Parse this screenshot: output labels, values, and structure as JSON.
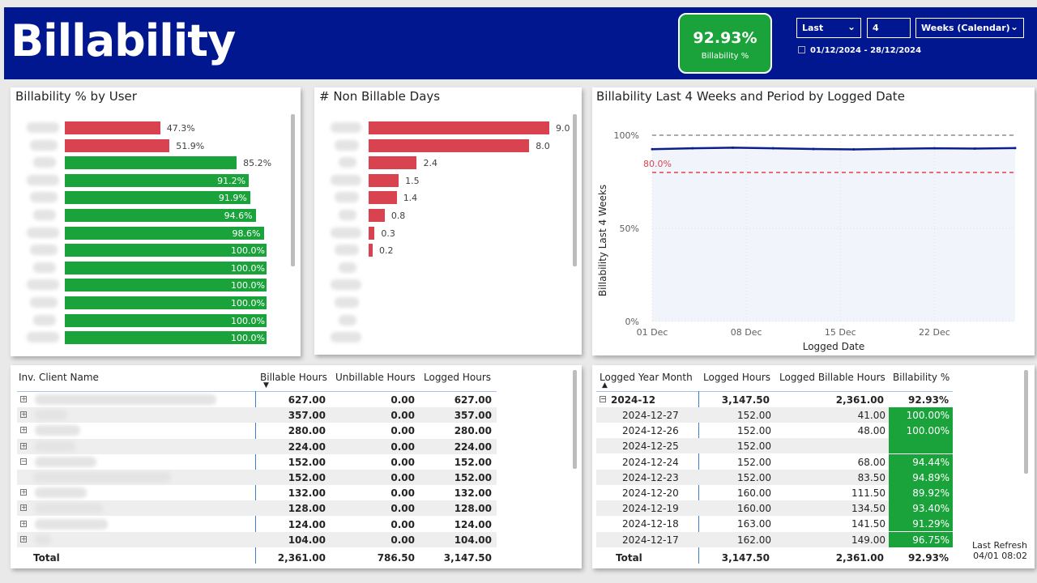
{
  "header": {
    "title": "Billability",
    "kpi_value": "92.93%",
    "kpi_label": "Billability %",
    "slicer_relative": "Last",
    "slicer_count": "4",
    "slicer_unit": "Weeks (Calendar)",
    "date_range": "01/12/2024 - 28/12/2024"
  },
  "colors": {
    "brand": "#00178f",
    "good": "#1aa33a",
    "bad": "#d94350"
  },
  "chart_data": [
    {
      "type": "bar",
      "title": "Billability % by User",
      "orientation": "horizontal",
      "categories_hidden": true,
      "values": [
        47.3,
        51.9,
        85.2,
        91.2,
        91.9,
        94.6,
        98.6,
        100.0,
        100.0,
        100.0,
        100.0,
        100.0,
        100.0
      ],
      "labels": [
        "47.3%",
        "51.9%",
        "85.2%",
        "91.2%",
        "91.9%",
        "94.6%",
        "98.6%",
        "100.0%",
        "100.0%",
        "100.0%",
        "100.0%",
        "100.0%",
        "100.0%"
      ],
      "colors": [
        "#d94350",
        "#d94350",
        "#1aa33a",
        "#1aa33a",
        "#1aa33a",
        "#1aa33a",
        "#1aa33a",
        "#1aa33a",
        "#1aa33a",
        "#1aa33a",
        "#1aa33a",
        "#1aa33a",
        "#1aa33a"
      ],
      "xlim": [
        0,
        100
      ]
    },
    {
      "type": "bar",
      "title": "# Non Billable Days",
      "orientation": "horizontal",
      "categories_hidden": true,
      "values": [
        9.0,
        8.0,
        2.4,
        1.5,
        1.4,
        0.8,
        0.3,
        0.2
      ],
      "labels": [
        "9.0",
        "8.0",
        "2.4",
        "1.5",
        "1.4",
        "0.8",
        "0.3",
        "0.2"
      ],
      "xlim": [
        0,
        9.0
      ]
    },
    {
      "type": "line",
      "title": "Billability Last 4 Weeks and Period by Logged Date",
      "xlabel": "Logged Date",
      "ylabel": "Billability Last 4 Weeks",
      "x_ticks": [
        "01 Dec",
        "08 Dec",
        "15 Dec",
        "22 Dec"
      ],
      "y_ticks": [
        "100%",
        "50%",
        "0%"
      ],
      "ylim": [
        0,
        100
      ],
      "x_days": [
        1,
        28
      ],
      "series": [
        {
          "name": "Billability Last 4 Weeks",
          "x": [
            1,
            4,
            7,
            10,
            13,
            16,
            19,
            22,
            25,
            28
          ],
          "values": [
            92.5,
            93.0,
            93.3,
            93.0,
            92.6,
            92.4,
            92.7,
            93.0,
            92.8,
            93.1
          ]
        }
      ],
      "reference_lines": [
        {
          "value": 100,
          "label": "",
          "color": "#aaaaaa"
        },
        {
          "value": 80,
          "label": "80.0%",
          "color": "#e86b7a"
        }
      ]
    }
  ],
  "client_table": {
    "headers": [
      "Inv. Client Name",
      "Billable Hours",
      "Unbillable Hours",
      "Logged Hours"
    ],
    "rows": [
      {
        "billable": "627.00",
        "unbillable": "0.00",
        "logged": "627.00"
      },
      {
        "billable": "357.00",
        "unbillable": "0.00",
        "logged": "357.00"
      },
      {
        "billable": "280.00",
        "unbillable": "0.00",
        "logged": "280.00"
      },
      {
        "billable": "224.00",
        "unbillable": "0.00",
        "logged": "224.00"
      },
      {
        "billable": "152.00",
        "unbillable": "0.00",
        "logged": "152.00"
      },
      {
        "billable": "152.00",
        "unbillable": "0.00",
        "logged": "152.00"
      },
      {
        "billable": "132.00",
        "unbillable": "0.00",
        "logged": "132.00"
      },
      {
        "billable": "128.00",
        "unbillable": "0.00",
        "logged": "128.00"
      },
      {
        "billable": "124.00",
        "unbillable": "0.00",
        "logged": "124.00"
      },
      {
        "billable": "104.00",
        "unbillable": "0.00",
        "logged": "104.00"
      }
    ],
    "total_label": "Total",
    "total": {
      "billable": "2,361.00",
      "unbillable": "786.50",
      "logged": "3,147.50"
    }
  },
  "date_table": {
    "headers": [
      "Logged Year Month",
      "Logged Hours",
      "Logged Billable Hours",
      "Billability %"
    ],
    "group": {
      "label": "2024-12",
      "logged": "3,147.50",
      "billable": "2,361.00",
      "pct": "92.93%"
    },
    "rows": [
      {
        "date": "2024-12-27",
        "logged": "152.00",
        "billable": "41.00",
        "pct": "100.00%"
      },
      {
        "date": "2024-12-26",
        "logged": "152.00",
        "billable": "48.00",
        "pct": "100.00%"
      },
      {
        "date": "2024-12-25",
        "logged": "152.00",
        "billable": "",
        "pct": ""
      },
      {
        "date": "2024-12-24",
        "logged": "152.00",
        "billable": "68.00",
        "pct": "94.44%"
      },
      {
        "date": "2024-12-23",
        "logged": "152.00",
        "billable": "83.50",
        "pct": "94.89%"
      },
      {
        "date": "2024-12-20",
        "logged": "160.00",
        "billable": "111.50",
        "pct": "89.92%"
      },
      {
        "date": "2024-12-19",
        "logged": "160.00",
        "billable": "134.50",
        "pct": "93.40%"
      },
      {
        "date": "2024-12-18",
        "logged": "163.00",
        "billable": "141.50",
        "pct": "91.29%"
      },
      {
        "date": "2024-12-17",
        "logged": "162.00",
        "billable": "149.00",
        "pct": "96.75%"
      }
    ],
    "total_label": "Total",
    "total": {
      "logged": "3,147.50",
      "billable": "2,361.00",
      "pct": "92.93%"
    }
  },
  "footer": {
    "refresh_label": "Last Refresh",
    "refresh_value": "04/01 08:02"
  }
}
